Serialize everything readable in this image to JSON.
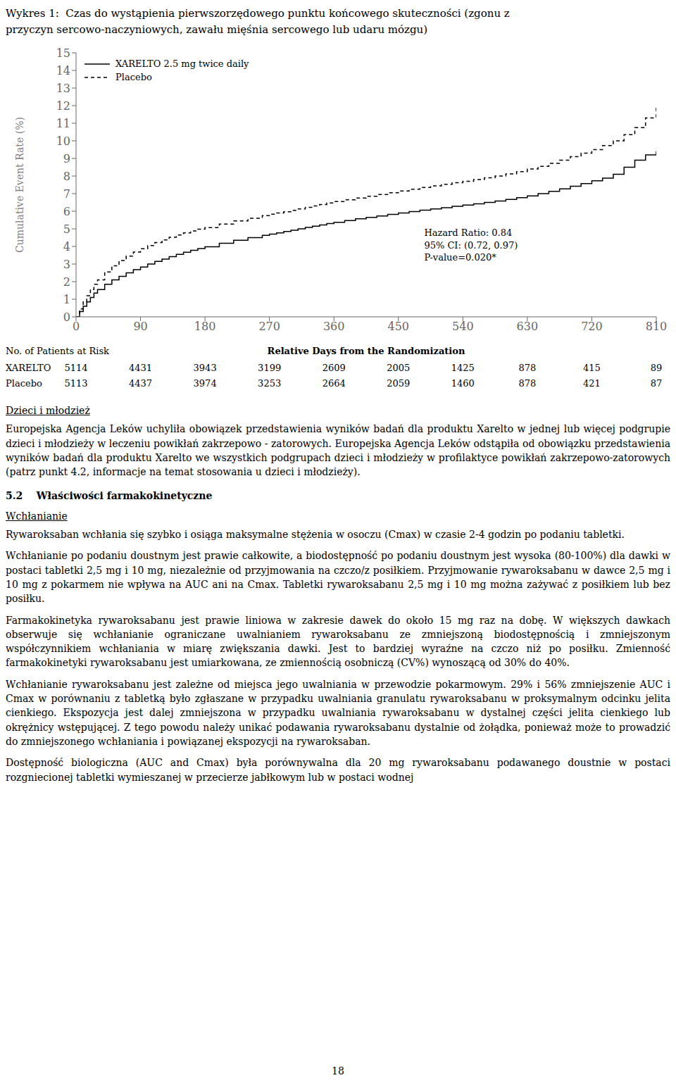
{
  "chart_data": {
    "type": "step",
    "title": "Wykres 1:  Czas do wystąpienia pierwszorzędowego punktu końcowego skuteczności (zgonu z\nprzyczyn sercowo-naczyniowych, zawału mięśnia sercowego lub udaru mózgu)",
    "ylabel": "Cumulative Event Rate (%)",
    "xlim": [
      0,
      810
    ],
    "xticks": [
      0,
      90,
      180,
      270,
      360,
      450,
      540,
      630,
      720,
      810
    ],
    "ylim": [
      0,
      15
    ],
    "yticks": [
      0,
      1,
      2,
      3,
      4,
      5,
      6,
      7,
      8,
      9,
      10,
      11,
      12,
      13,
      14,
      15
    ],
    "grid": false,
    "legend": "upper left",
    "series": [
      {
        "name": "XARELTO 2.5 mg twice daily",
        "color": "#000000",
        "line_style": "solid",
        "x": [
          0,
          5,
          10,
          15,
          20,
          25,
          30,
          40,
          50,
          60,
          70,
          80,
          90,
          100,
          110,
          120,
          130,
          140,
          150,
          160,
          170,
          180,
          200,
          220,
          240,
          260,
          270,
          280,
          290,
          300,
          310,
          320,
          330,
          340,
          350,
          360,
          375,
          390,
          405,
          420,
          435,
          450,
          465,
          480,
          495,
          510,
          525,
          540,
          555,
          570,
          585,
          600,
          615,
          630,
          645,
          660,
          675,
          690,
          705,
          720,
          735,
          750,
          765,
          780,
          795,
          810
        ],
        "values": [
          0.0,
          0.3,
          0.6,
          0.85,
          1.1,
          1.35,
          1.55,
          1.85,
          2.1,
          2.3,
          2.5,
          2.68,
          2.83,
          3.0,
          3.15,
          3.28,
          3.42,
          3.55,
          3.67,
          3.78,
          3.88,
          3.98,
          4.18,
          4.35,
          4.5,
          4.63,
          4.7,
          4.77,
          4.85,
          4.92,
          5.0,
          5.08,
          5.15,
          5.22,
          5.3,
          5.37,
          5.47,
          5.57,
          5.65,
          5.73,
          5.82,
          5.9,
          5.98,
          6.06,
          6.13,
          6.2,
          6.28,
          6.35,
          6.42,
          6.5,
          6.58,
          6.67,
          6.77,
          6.87,
          7.0,
          7.13,
          7.27,
          7.42,
          7.57,
          7.73,
          7.88,
          8.1,
          8.5,
          8.9,
          9.2,
          9.4
        ]
      },
      {
        "name": "Placebo",
        "color": "#000000",
        "line_style": "dashed",
        "x": [
          0,
          5,
          10,
          15,
          20,
          25,
          30,
          40,
          50,
          60,
          70,
          80,
          90,
          100,
          110,
          120,
          130,
          140,
          150,
          160,
          170,
          180,
          200,
          220,
          240,
          260,
          270,
          280,
          290,
          300,
          310,
          320,
          330,
          340,
          350,
          360,
          375,
          390,
          405,
          420,
          435,
          450,
          465,
          480,
          495,
          510,
          525,
          540,
          555,
          570,
          585,
          600,
          615,
          630,
          645,
          660,
          675,
          690,
          705,
          720,
          735,
          750,
          765,
          780,
          795,
          810
        ],
        "values": [
          0.0,
          0.45,
          0.85,
          1.2,
          1.55,
          1.85,
          2.1,
          2.55,
          2.9,
          3.2,
          3.45,
          3.68,
          3.87,
          4.05,
          4.22,
          4.37,
          4.52,
          4.65,
          4.77,
          4.88,
          4.98,
          5.07,
          5.27,
          5.45,
          5.6,
          5.75,
          5.83,
          5.9,
          5.97,
          6.05,
          6.13,
          6.22,
          6.3,
          6.38,
          6.47,
          6.55,
          6.65,
          6.75,
          6.85,
          6.95,
          7.05,
          7.15,
          7.25,
          7.35,
          7.44,
          7.53,
          7.62,
          7.7,
          7.8,
          7.9,
          8.0,
          8.12,
          8.25,
          8.4,
          8.55,
          8.72,
          8.9,
          9.1,
          9.3,
          9.5,
          9.73,
          10.0,
          10.35,
          10.75,
          11.3,
          12.0
        ]
      }
    ],
    "annotations": [
      "Hazard Ratio: 0.84\n95% CI: (0.72, 0.97)\nP-value=0.020*"
    ],
    "risk_table": {
      "title": "No. of Patients at Risk",
      "header": "Relative Days from the Randomization",
      "rows": [
        {
          "name": "XARELTO",
          "values": [
            5114,
            4431,
            3943,
            3199,
            2609,
            2005,
            1425,
            878,
            415,
            89
          ]
        },
        {
          "name": "Placebo",
          "values": [
            5113,
            4437,
            3974,
            3253,
            2664,
            2059,
            1460,
            878,
            421,
            87
          ]
        }
      ]
    }
  },
  "document": {
    "sections": [
      {
        "subheading": "Dzieci i młodzież",
        "paragraphs": [
          "Europejska Agencja Leków uchyliła obowiązek przedstawienia wyników badań dla produktu Xarelto w jednej lub więcej podgrupie dzieci i młodzieży w leczeniu powikłań zakrzepowo - zatorowych. Europejska Agencja Leków odstąpiła od obowiązku przedstawienia wyników badań dla produktu Xarelto we wszystkich podgrupach dzieci i młodzieży w profilaktyce powikłań zakrzepowo-zatorowych (patrz punkt 4.2, informacje na temat stosowania u dzieci i młodzieży)."
        ]
      },
      {
        "heading": "5.2    Właściwości farmakokinetyczne",
        "subheading": "Wchłanianie",
        "paragraphs": [
          "Rywaroksaban wchłania się szybko i osiąga maksymalne stężenia w osoczu (Cmax) w czasie 2-4 godzin po podaniu tabletki.",
          "Wchłanianie po podaniu doustnym jest prawie całkowite, a biodostępność po podaniu doustnym jest wysoka (80-100%) dla dawki w postaci tabletki 2,5 mg i 10 mg, niezależnie od przyjmowania na czczo/z posiłkiem. Przyjmowanie rywaroksabanu w dawce 2,5 mg i 10 mg z pokarmem nie wpływa na AUC ani na Cmax. Tabletki rywaroksabanu 2,5 mg i 10 mg można zażywać z posiłkiem lub bez posiłku.",
          "Farmakokinetyka rywaroksabanu jest prawie liniowa w zakresie dawek do około 15 mg raz na dobę. W większych dawkach obserwuje się wchłanianie ograniczane uwalnianiem rywaroksabanu ze zmniejszoną biodostępnością i zmniejszonym współczynnikiem wchłaniania w miarę zwiększania dawki. Jest to bardziej wyraźne na czczo niż po posiłku. Zmienność farmakokinetyki rywaroksabanu jest umiarkowana, ze zmiennością osobniczą (CV%) wynoszącą od 30% do 40%.",
          "Wchłanianie rywaroksabanu jest zależne od miejsca jego uwalniania w przewodzie pokarmowym. 29% i 56% zmniejszenie AUC i Cmax w porównaniu z tabletką było zgłaszane w przypadku uwalniania granulatu rywaroksabanu w proksymalnym odcinku jelita cienkiego. Ekspozycja jest dalej zmniejszona w przypadku uwalniania rywaroksabanu w dystalnej części jelita cienkiego lub okrężnicy wstępującej. Z tego powodu należy unikać podawania rywaroksabanu dystalnie od żołądka, ponieważ może to prowadzić do zmniejszonego wchłaniania i powiązanej ekspozycji na rywaroksaban.",
          "Dostępność biologiczna (AUC and Cmax) była porównywalna dla 20 mg rywaroksabanu podawanego doustnie w postaci rozgniecionej tabletki wymieszanej w przecierze jabłkowym lub w postaci wodnej"
        ]
      }
    ],
    "page_number": "18"
  }
}
